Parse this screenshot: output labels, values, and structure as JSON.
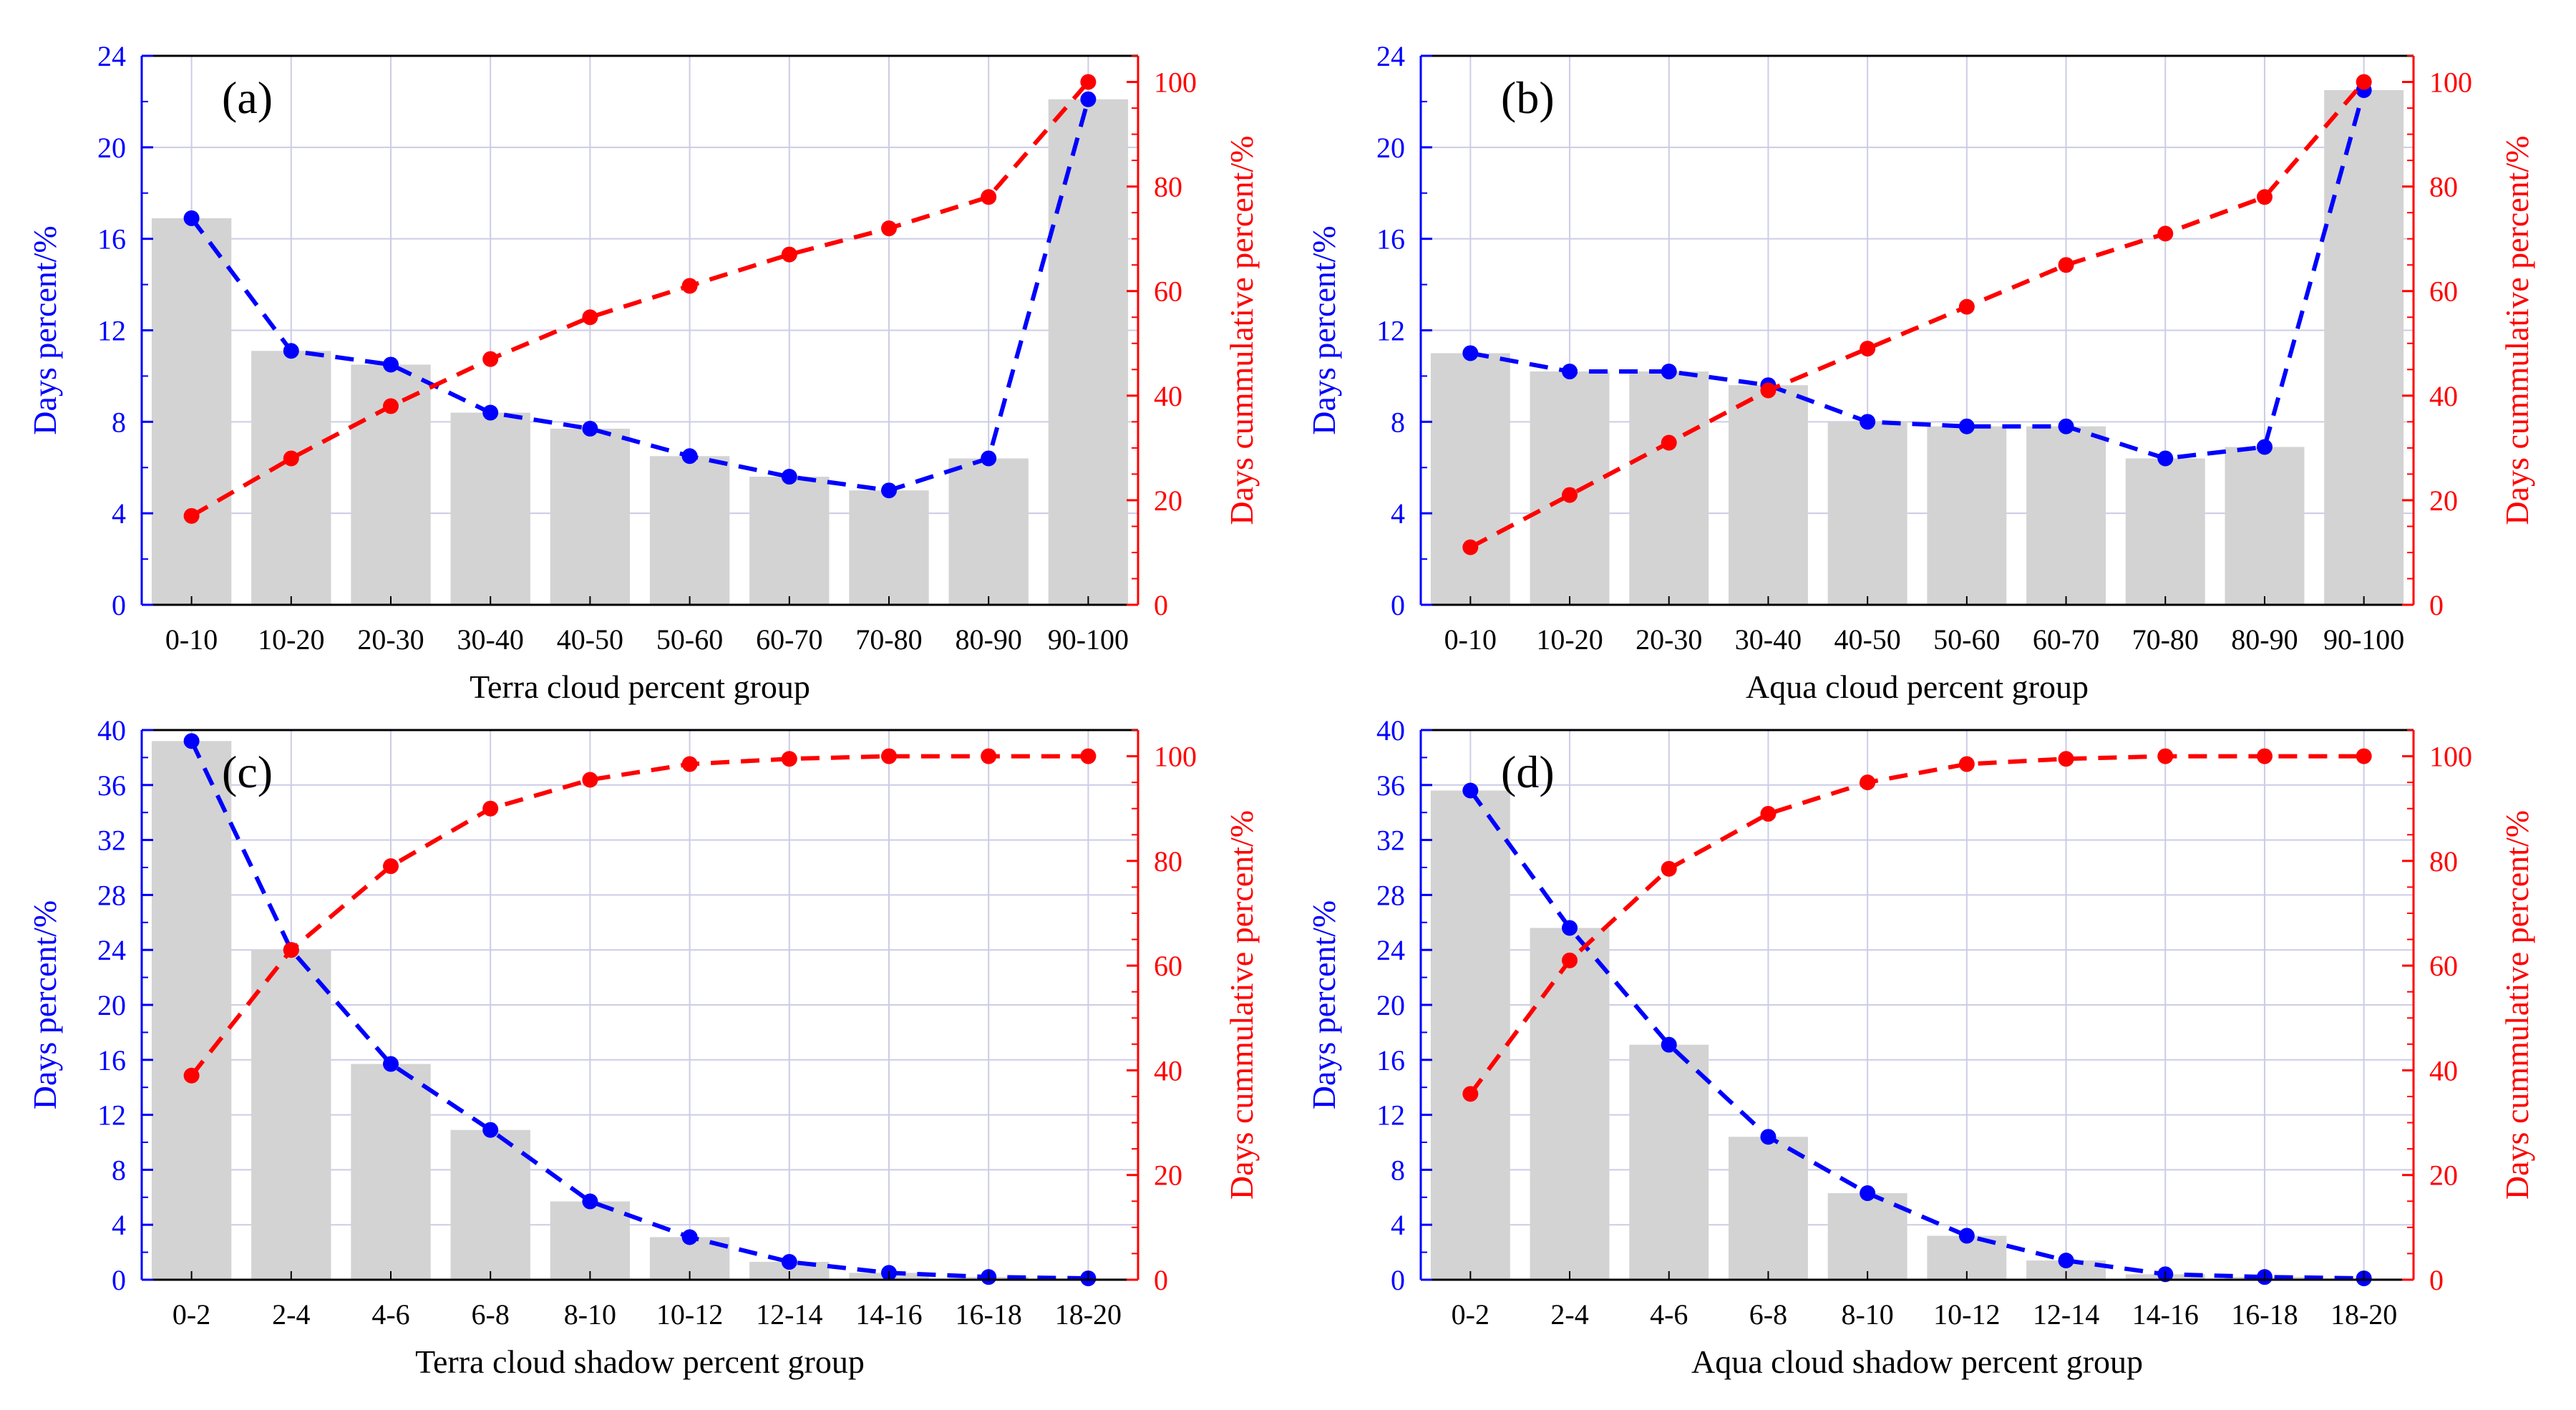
{
  "colors": {
    "bar": "#d3d3d3",
    "left_axis": "#0000ff",
    "right_axis": "#ff0000",
    "grid": "#cccce6"
  },
  "chart_data": [
    {
      "panel_label": "(a)",
      "type": "bar",
      "categories": [
        "0-10",
        "10-20",
        "20-30",
        "30-40",
        "40-50",
        "50-60",
        "60-70",
        "70-80",
        "80-90",
        "90-100"
      ],
      "xlabel": "Terra cloud percent group",
      "ylabel": "Days percent/%",
      "y2label": "Days cummulative percent/%",
      "ylim": [
        0,
        24
      ],
      "yticks": [
        "0",
        "4",
        "8",
        "12",
        "16",
        "20",
        "24"
      ],
      "y2lim": [
        0,
        105
      ],
      "y2ticks": [
        "0",
        "20",
        "40",
        "60",
        "80",
        "100"
      ],
      "grid": true,
      "series": [
        {
          "type": "bar",
          "axis": "left",
          "values": [
            16.9,
            11.1,
            10.5,
            8.4,
            7.7,
            6.5,
            5.6,
            5.0,
            6.4,
            22.1
          ]
        },
        {
          "type": "line",
          "axis": "left",
          "style": "dashed",
          "color": "#0000ff",
          "values": [
            16.9,
            11.1,
            10.5,
            8.4,
            7.7,
            6.5,
            5.6,
            5.0,
            6.4,
            22.1
          ]
        },
        {
          "type": "line",
          "axis": "right",
          "style": "dashed",
          "color": "#ff0000",
          "values": [
            17,
            28,
            38,
            47,
            55,
            61,
            67,
            72,
            78,
            100
          ]
        }
      ]
    },
    {
      "panel_label": "(b)",
      "type": "bar",
      "categories": [
        "0-10",
        "10-20",
        "20-30",
        "30-40",
        "40-50",
        "50-60",
        "60-70",
        "70-80",
        "80-90",
        "90-100"
      ],
      "xlabel": "Aqua cloud percent group",
      "ylabel": "Days percent/%",
      "y2label": "Days cummulative percent/%",
      "ylim": [
        0,
        24
      ],
      "yticks": [
        "0",
        "4",
        "8",
        "12",
        "16",
        "20",
        "24"
      ],
      "y2lim": [
        0,
        105
      ],
      "y2ticks": [
        "0",
        "20",
        "40",
        "60",
        "80",
        "100"
      ],
      "grid": true,
      "series": [
        {
          "type": "bar",
          "axis": "left",
          "values": [
            11.0,
            10.2,
            10.2,
            9.6,
            8.0,
            7.8,
            7.8,
            6.4,
            6.9,
            22.5
          ]
        },
        {
          "type": "line",
          "axis": "left",
          "style": "dashed",
          "color": "#0000ff",
          "values": [
            11.0,
            10.2,
            10.2,
            9.6,
            8.0,
            7.8,
            7.8,
            6.4,
            6.9,
            22.5
          ]
        },
        {
          "type": "line",
          "axis": "right",
          "style": "dashed",
          "color": "#ff0000",
          "values": [
            11,
            21,
            31,
            41,
            49,
            57,
            65,
            71,
            78,
            100
          ]
        }
      ]
    },
    {
      "panel_label": "(c)",
      "type": "bar",
      "categories": [
        "0-2",
        "2-4",
        "4-6",
        "6-8",
        "8-10",
        "10-12",
        "12-14",
        "14-16",
        "16-18",
        "18-20"
      ],
      "xlabel": "Terra cloud shadow percent group",
      "ylabel": "Days percent/%",
      "y2label": "Days cummulative percent/%",
      "ylim": [
        0,
        40
      ],
      "yticks": [
        "0",
        "4",
        "8",
        "12",
        "16",
        "20",
        "24",
        "28",
        "32",
        "36",
        "40"
      ],
      "y2lim": [
        0,
        105
      ],
      "y2ticks": [
        "0",
        "20",
        "40",
        "60",
        "80",
        "100"
      ],
      "grid": true,
      "series": [
        {
          "type": "bar",
          "axis": "left",
          "values": [
            39.2,
            24.0,
            15.7,
            10.9,
            5.7,
            3.1,
            1.3,
            0.5,
            0.2,
            0.1
          ]
        },
        {
          "type": "line",
          "axis": "left",
          "style": "dashed",
          "color": "#0000ff",
          "values": [
            39.2,
            24.0,
            15.7,
            10.9,
            5.7,
            3.1,
            1.3,
            0.5,
            0.2,
            0.1
          ]
        },
        {
          "type": "line",
          "axis": "right",
          "style": "dashed",
          "color": "#ff0000",
          "values": [
            39,
            63,
            79,
            90,
            95.5,
            98.5,
            99.5,
            100,
            100,
            100
          ]
        }
      ]
    },
    {
      "panel_label": "(d)",
      "type": "bar",
      "categories": [
        "0-2",
        "2-4",
        "4-6",
        "6-8",
        "8-10",
        "10-12",
        "12-14",
        "14-16",
        "16-18",
        "18-20"
      ],
      "xlabel": "Aqua cloud shadow percent group",
      "ylabel": "Days percent/%",
      "y2label": "Days cummulative percent/%",
      "ylim": [
        0,
        40
      ],
      "yticks": [
        "0",
        "4",
        "8",
        "12",
        "16",
        "20",
        "24",
        "28",
        "32",
        "36",
        "40"
      ],
      "y2lim": [
        0,
        105
      ],
      "y2ticks": [
        "0",
        "20",
        "40",
        "60",
        "80",
        "100"
      ],
      "grid": true,
      "series": [
        {
          "type": "bar",
          "axis": "left",
          "values": [
            35.6,
            25.6,
            17.1,
            10.4,
            6.3,
            3.2,
            1.4,
            0.4,
            0.2,
            0.1
          ]
        },
        {
          "type": "line",
          "axis": "left",
          "style": "dashed",
          "color": "#0000ff",
          "values": [
            35.6,
            25.6,
            17.1,
            10.4,
            6.3,
            3.2,
            1.4,
            0.4,
            0.2,
            0.1
          ]
        },
        {
          "type": "line",
          "axis": "right",
          "style": "dashed",
          "color": "#ff0000",
          "values": [
            35.5,
            61,
            78.5,
            89,
            95,
            98.5,
            99.5,
            100,
            100,
            100
          ]
        }
      ]
    }
  ]
}
